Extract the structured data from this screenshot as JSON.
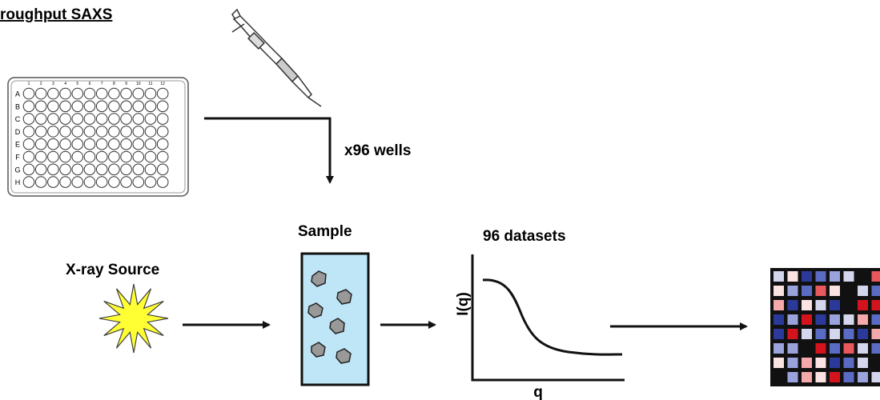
{
  "header": {
    "title": "roughput SAXS"
  },
  "plate": {
    "columns": [
      "1",
      "2",
      "3",
      "4",
      "5",
      "6",
      "7",
      "8",
      "9",
      "10",
      "11",
      "12"
    ],
    "rows": [
      "A",
      "B",
      "C",
      "D",
      "E",
      "F",
      "G",
      "H"
    ]
  },
  "steps": {
    "wells": "x96 wells",
    "source": "X-ray Source",
    "sample": "Sample",
    "datasets": "96 datasets"
  },
  "plot": {
    "ylabel": "I(q)",
    "xlabel": "q"
  }
}
